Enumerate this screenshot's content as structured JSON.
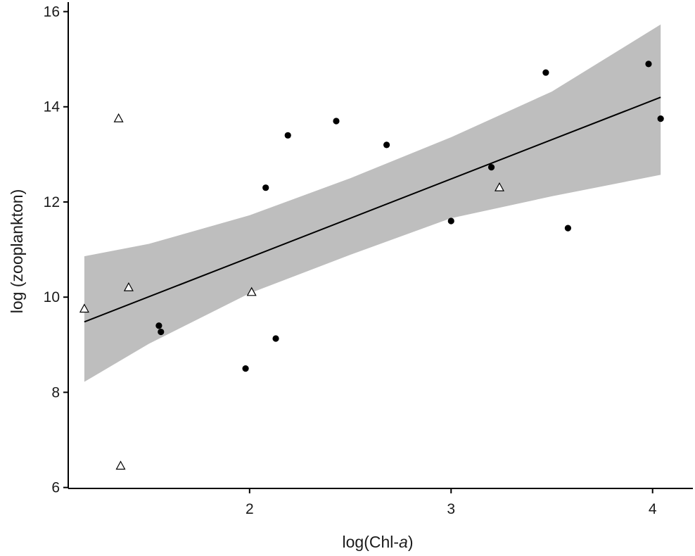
{
  "chart_data": {
    "type": "scatter",
    "title": "",
    "xlabel": "log(Chl-",
    "xlabel_italic": "a",
    "xlabel_close": ")",
    "ylabel": "log (zooplankton)",
    "xlim": [
      1.1,
      4.2
    ],
    "ylim": [
      5.98,
      16.2
    ],
    "x_ticks": [
      2,
      3,
      4
    ],
    "y_ticks": [
      6,
      8,
      10,
      12,
      14,
      16
    ],
    "grid": false,
    "colors": {
      "band": "#bebebe",
      "line": "#000000",
      "points": "#000000",
      "axis": "#000000"
    },
    "series": [
      {
        "marker": "filled-circle",
        "points": [
          {
            "x": 1.55,
            "y": 9.4
          },
          {
            "x": 1.56,
            "y": 9.27
          },
          {
            "x": 1.98,
            "y": 8.5
          },
          {
            "x": 2.08,
            "y": 12.3
          },
          {
            "x": 2.13,
            "y": 9.13
          },
          {
            "x": 2.19,
            "y": 13.4
          },
          {
            "x": 2.43,
            "y": 13.7
          },
          {
            "x": 2.68,
            "y": 13.2
          },
          {
            "x": 3.0,
            "y": 11.6
          },
          {
            "x": 3.2,
            "y": 12.73
          },
          {
            "x": 3.47,
            "y": 14.72
          },
          {
            "x": 3.58,
            "y": 11.45
          },
          {
            "x": 3.98,
            "y": 14.9
          },
          {
            "x": 4.04,
            "y": 13.75
          }
        ]
      },
      {
        "marker": "open-triangle",
        "points": [
          {
            "x": 1.18,
            "y": 9.75
          },
          {
            "x": 1.35,
            "y": 13.75
          },
          {
            "x": 1.36,
            "y": 6.45
          },
          {
            "x": 1.4,
            "y": 10.2
          },
          {
            "x": 2.01,
            "y": 10.1
          },
          {
            "x": 3.24,
            "y": 12.3
          }
        ]
      }
    ],
    "fit_line": {
      "x": [
        1.18,
        4.04
      ],
      "y": [
        9.48,
        14.2
      ]
    },
    "confidence_band": {
      "x": [
        1.18,
        1.5,
        2.0,
        2.5,
        3.0,
        3.5,
        4.04
      ],
      "upper": [
        10.86,
        11.12,
        11.72,
        12.5,
        13.36,
        14.32,
        15.73
      ],
      "lower": [
        8.22,
        9.02,
        10.08,
        10.89,
        11.66,
        12.12,
        12.57
      ]
    }
  }
}
